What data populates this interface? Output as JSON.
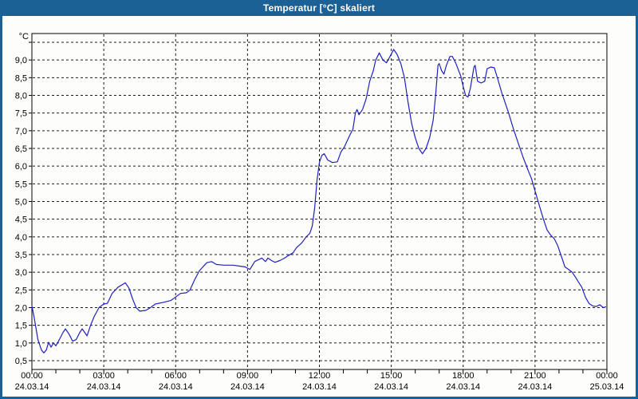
{
  "window": {
    "title": "Temperatur [°C] skaliert"
  },
  "colors": {
    "titlebar": "#1c6195",
    "window_border": "#1c6195",
    "background": "#fdfefb",
    "line": "#2020c0",
    "grid": "#1a1a1a",
    "text": "#000000"
  },
  "chart_data": {
    "type": "line",
    "title": "Temperatur [°C] skaliert",
    "xlabel": "",
    "ylabel": "°C",
    "grid": true,
    "legend": "none",
    "x_axis": {
      "unit": "hours",
      "range": [
        0,
        24
      ],
      "minor_tick_every_hours": 1,
      "major_ticks": [
        {
          "hour": 0,
          "time": "00:00",
          "date": "24.03.14"
        },
        {
          "hour": 3,
          "time": "03:00",
          "date": "24.03.14"
        },
        {
          "hour": 6,
          "time": "06:00",
          "date": "24.03.14"
        },
        {
          "hour": 9,
          "time": "09:00",
          "date": "24.03.14"
        },
        {
          "hour": 12,
          "time": "12:00",
          "date": "24.03.14"
        },
        {
          "hour": 15,
          "time": "15:00",
          "date": "24.03.14"
        },
        {
          "hour": 18,
          "time": "18:00",
          "date": "24.03.14"
        },
        {
          "hour": 21,
          "time": "21:00",
          "date": "24.03.14"
        },
        {
          "hour": 24,
          "time": "00:00",
          "date": "25.03.14"
        }
      ]
    },
    "y_axis": {
      "unit_label": "°C",
      "range_shown": [
        0.25,
        9.72
      ],
      "gridline_values": [
        9.5,
        9.0,
        8.5,
        8.0,
        7.5,
        7.0,
        6.5,
        6.0,
        5.5,
        5.0,
        4.5,
        4.0,
        3.5,
        3.0,
        2.5,
        2.0,
        1.5,
        1.0,
        0.5
      ],
      "tick_labels": [
        {
          "value": 9.0,
          "label": "9,0"
        },
        {
          "value": 8.5,
          "label": "8,5"
        },
        {
          "value": 8.0,
          "label": "8,0"
        },
        {
          "value": 7.5,
          "label": "7,5"
        },
        {
          "value": 7.0,
          "label": "7,0"
        },
        {
          "value": 6.5,
          "label": "6,5"
        },
        {
          "value": 6.0,
          "label": "6,0"
        },
        {
          "value": 5.5,
          "label": "5,5"
        },
        {
          "value": 5.0,
          "label": "5,0"
        },
        {
          "value": 4.5,
          "label": "4,5"
        },
        {
          "value": 4.0,
          "label": "4,0"
        },
        {
          "value": 3.5,
          "label": "3,5"
        },
        {
          "value": 3.0,
          "label": "3,0"
        },
        {
          "value": 2.5,
          "label": "2,5"
        },
        {
          "value": 2.0,
          "label": "2,0"
        },
        {
          "value": 1.5,
          "label": "1,5"
        },
        {
          "value": 1.0,
          "label": "1,0"
        },
        {
          "value": 0.5,
          "label": "0,5"
        }
      ]
    },
    "series": [
      {
        "name": "Temperatur",
        "color": "#2020c0",
        "points": [
          [
            0.0,
            2.05
          ],
          [
            0.1,
            1.7
          ],
          [
            0.25,
            1.1
          ],
          [
            0.4,
            0.8
          ],
          [
            0.5,
            0.72
          ],
          [
            0.6,
            0.8
          ],
          [
            0.7,
            1.02
          ],
          [
            0.8,
            0.88
          ],
          [
            0.9,
            1.0
          ],
          [
            1.0,
            0.92
          ],
          [
            1.15,
            1.1
          ],
          [
            1.3,
            1.3
          ],
          [
            1.4,
            1.4
          ],
          [
            1.55,
            1.25
          ],
          [
            1.7,
            1.05
          ],
          [
            1.85,
            1.1
          ],
          [
            2.0,
            1.3
          ],
          [
            2.1,
            1.4
          ],
          [
            2.3,
            1.2
          ],
          [
            2.45,
            1.5
          ],
          [
            2.6,
            1.75
          ],
          [
            2.8,
            2.0
          ],
          [
            3.0,
            2.1
          ],
          [
            3.15,
            2.12
          ],
          [
            3.35,
            2.4
          ],
          [
            3.6,
            2.58
          ],
          [
            3.9,
            2.7
          ],
          [
            4.05,
            2.55
          ],
          [
            4.2,
            2.25
          ],
          [
            4.35,
            2.0
          ],
          [
            4.5,
            1.9
          ],
          [
            4.75,
            1.92
          ],
          [
            4.95,
            2.0
          ],
          [
            5.15,
            2.1
          ],
          [
            5.5,
            2.15
          ],
          [
            5.8,
            2.2
          ],
          [
            6.0,
            2.3
          ],
          [
            6.2,
            2.4
          ],
          [
            6.45,
            2.42
          ],
          [
            6.6,
            2.5
          ],
          [
            6.8,
            2.8
          ],
          [
            7.0,
            3.05
          ],
          [
            7.3,
            3.27
          ],
          [
            7.5,
            3.3
          ],
          [
            7.7,
            3.22
          ],
          [
            8.0,
            3.2
          ],
          [
            8.4,
            3.2
          ],
          [
            8.7,
            3.17
          ],
          [
            8.9,
            3.15
          ],
          [
            9.1,
            3.08
          ],
          [
            9.3,
            3.3
          ],
          [
            9.45,
            3.35
          ],
          [
            9.6,
            3.4
          ],
          [
            9.75,
            3.3
          ],
          [
            9.85,
            3.4
          ],
          [
            10.0,
            3.33
          ],
          [
            10.15,
            3.28
          ],
          [
            10.35,
            3.33
          ],
          [
            10.55,
            3.4
          ],
          [
            10.7,
            3.47
          ],
          [
            10.9,
            3.55
          ],
          [
            11.05,
            3.7
          ],
          [
            11.25,
            3.82
          ],
          [
            11.45,
            4.0
          ],
          [
            11.6,
            4.1
          ],
          [
            11.7,
            4.3
          ],
          [
            11.8,
            4.8
          ],
          [
            11.9,
            5.6
          ],
          [
            12.0,
            6.1
          ],
          [
            12.1,
            6.3
          ],
          [
            12.2,
            6.35
          ],
          [
            12.35,
            6.17
          ],
          [
            12.55,
            6.1
          ],
          [
            12.75,
            6.12
          ],
          [
            12.9,
            6.4
          ],
          [
            13.05,
            6.55
          ],
          [
            13.25,
            6.85
          ],
          [
            13.4,
            7.05
          ],
          [
            13.5,
            7.5
          ],
          [
            13.57,
            7.6
          ],
          [
            13.65,
            7.45
          ],
          [
            13.8,
            7.6
          ],
          [
            13.95,
            7.9
          ],
          [
            14.1,
            8.4
          ],
          [
            14.25,
            8.7
          ],
          [
            14.35,
            9.0
          ],
          [
            14.5,
            9.2
          ],
          [
            14.65,
            9.0
          ],
          [
            14.8,
            8.92
          ],
          [
            14.95,
            9.1
          ],
          [
            15.1,
            9.3
          ],
          [
            15.25,
            9.15
          ],
          [
            15.4,
            8.9
          ],
          [
            15.55,
            8.5
          ],
          [
            15.7,
            7.8
          ],
          [
            15.85,
            7.2
          ],
          [
            16.0,
            6.8
          ],
          [
            16.15,
            6.5
          ],
          [
            16.3,
            6.35
          ],
          [
            16.45,
            6.5
          ],
          [
            16.6,
            6.8
          ],
          [
            16.75,
            7.3
          ],
          [
            16.85,
            8.0
          ],
          [
            16.95,
            8.85
          ],
          [
            17.0,
            8.9
          ],
          [
            17.1,
            8.7
          ],
          [
            17.2,
            8.6
          ],
          [
            17.3,
            8.85
          ],
          [
            17.45,
            9.1
          ],
          [
            17.55,
            9.1
          ],
          [
            17.7,
            8.9
          ],
          [
            17.9,
            8.55
          ],
          [
            18.0,
            8.25
          ],
          [
            18.1,
            8.0
          ],
          [
            18.2,
            7.95
          ],
          [
            18.3,
            8.2
          ],
          [
            18.45,
            8.8
          ],
          [
            18.5,
            8.85
          ],
          [
            18.6,
            8.4
          ],
          [
            18.75,
            8.35
          ],
          [
            18.9,
            8.4
          ],
          [
            19.0,
            8.75
          ],
          [
            19.15,
            8.8
          ],
          [
            19.3,
            8.78
          ],
          [
            19.45,
            8.45
          ],
          [
            19.6,
            8.1
          ],
          [
            19.75,
            7.8
          ],
          [
            19.9,
            7.5
          ],
          [
            20.1,
            7.05
          ],
          [
            20.3,
            6.65
          ],
          [
            20.5,
            6.25
          ],
          [
            20.7,
            5.9
          ],
          [
            20.85,
            5.65
          ],
          [
            21.0,
            5.3
          ],
          [
            21.15,
            4.95
          ],
          [
            21.35,
            4.5
          ],
          [
            21.5,
            4.2
          ],
          [
            21.65,
            4.05
          ],
          [
            21.8,
            3.95
          ],
          [
            21.95,
            3.75
          ],
          [
            22.1,
            3.45
          ],
          [
            22.25,
            3.15
          ],
          [
            22.4,
            3.08
          ],
          [
            22.55,
            3.0
          ],
          [
            22.7,
            2.85
          ],
          [
            22.85,
            2.68
          ],
          [
            22.95,
            2.58
          ],
          [
            23.1,
            2.3
          ],
          [
            23.25,
            2.12
          ],
          [
            23.4,
            2.05
          ],
          [
            23.55,
            2.03
          ],
          [
            23.7,
            2.08
          ],
          [
            23.85,
            2.0
          ],
          [
            23.95,
            2.02
          ]
        ]
      }
    ]
  }
}
